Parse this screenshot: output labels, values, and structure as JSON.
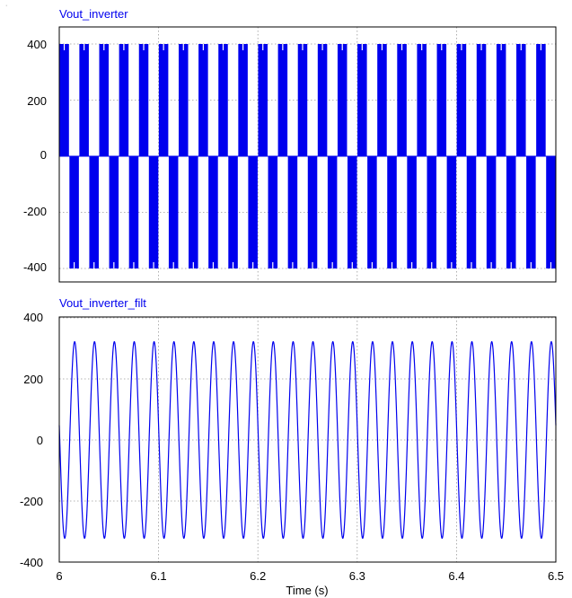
{
  "chart_data": [
    {
      "type": "line",
      "title": "Vout_inverter",
      "title_color": "#0000ee",
      "series_color": "#0000ee",
      "signal": "pwm_bipolar_switching",
      "amplitude": 400,
      "fundamental_frequency_hz": 50,
      "xlim": [
        6,
        6.5
      ],
      "ylim": [
        -450,
        450
      ],
      "y_ticks": [
        "400",
        "200",
        "0",
        "-200",
        "-400"
      ],
      "y_tick_values": [
        400,
        200,
        0,
        -200,
        -400
      ],
      "grid": true
    },
    {
      "type": "line",
      "title": "Vout_inverter_filt",
      "title_color": "#0000ee",
      "series_color": "#0000ee",
      "signal": "sine",
      "amplitude": 322,
      "fundamental_frequency_hz": 50,
      "xlim": [
        6,
        6.5
      ],
      "ylim": [
        -400,
        400
      ],
      "y_ticks": [
        "400",
        "200",
        "0",
        "-200",
        "-400"
      ],
      "y_tick_values": [
        400,
        200,
        0,
        -200,
        -400
      ],
      "x_ticks": [
        "6",
        "6.1",
        "6.2",
        "6.3",
        "6.4",
        "6.5"
      ],
      "x_tick_values": [
        6,
        6.1,
        6.2,
        6.3,
        6.4,
        6.5
      ],
      "xlabel": "Time (s)",
      "grid": true
    }
  ]
}
